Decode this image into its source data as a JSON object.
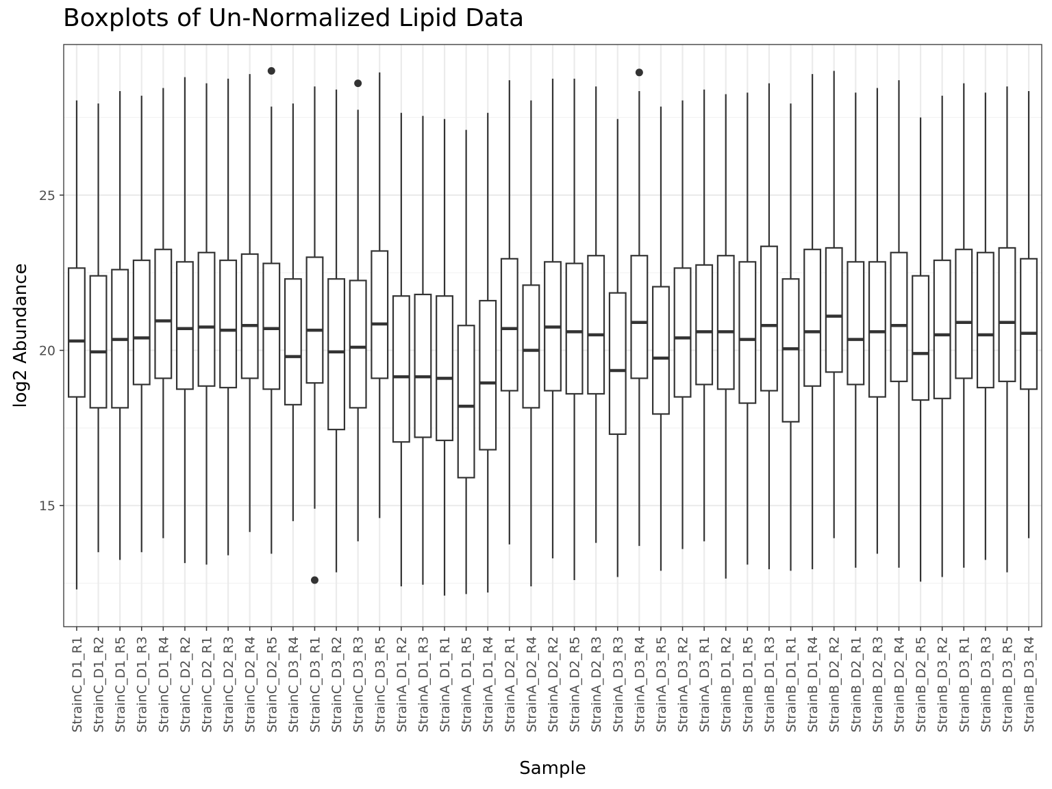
{
  "chart_data": {
    "type": "boxplot",
    "title": "Boxplots of Un-Normalized Lipid Data",
    "xlabel": "Sample",
    "ylabel": "log2 Abundance",
    "ylim": [
      11.1,
      29.85
    ],
    "yticks": [
      15,
      20,
      25
    ],
    "grid": true,
    "legend": "none",
    "colors": {
      "box": "#333333",
      "grid_major": "#ebebeb",
      "grid_minor": "#f2f2f2",
      "panel_border": "#333333",
      "tick_label": "#4d4d4d"
    },
    "categories": [
      "StrainC_D1_R1",
      "StrainC_D1_R2",
      "StrainC_D1_R5",
      "StrainC_D1_R3",
      "StrainC_D1_R4",
      "StrainC_D2_R2",
      "StrainC_D2_R1",
      "StrainC_D2_R3",
      "StrainC_D2_R4",
      "StrainC_D2_R5",
      "StrainC_D3_R4",
      "StrainC_D3_R1",
      "StrainC_D3_R2",
      "StrainC_D3_R3",
      "StrainC_D3_R5",
      "StrainA_D1_R2",
      "StrainA_D1_R3",
      "StrainA_D1_R1",
      "StrainA_D1_R5",
      "StrainA_D1_R4",
      "StrainA_D2_R1",
      "StrainA_D2_R4",
      "StrainA_D2_R2",
      "StrainA_D2_R5",
      "StrainA_D2_R3",
      "StrainA_D3_R3",
      "StrainA_D3_R4",
      "StrainA_D3_R5",
      "StrainA_D3_R2",
      "StrainA_D3_R1",
      "StrainB_D1_R2",
      "StrainB_D1_R5",
      "StrainB_D1_R3",
      "StrainB_D1_R1",
      "StrainB_D1_R4",
      "StrainB_D2_R2",
      "StrainB_D2_R1",
      "StrainB_D2_R3",
      "StrainB_D2_R4",
      "StrainB_D2_R5",
      "StrainB_D3_R2",
      "StrainB_D3_R1",
      "StrainB_D3_R3",
      "StrainB_D3_R5",
      "StrainB_D3_R4"
    ],
    "boxes": [
      {
        "min": 12.3,
        "q1": 18.5,
        "median": 20.3,
        "q3": 22.65,
        "max": 28.05,
        "outliers": []
      },
      {
        "min": 13.5,
        "q1": 18.15,
        "median": 19.95,
        "q3": 22.4,
        "max": 27.95,
        "outliers": []
      },
      {
        "min": 13.25,
        "q1": 18.15,
        "median": 20.35,
        "q3": 22.6,
        "max": 28.35,
        "outliers": []
      },
      {
        "min": 13.5,
        "q1": 18.9,
        "median": 20.4,
        "q3": 22.9,
        "max": 28.2,
        "outliers": []
      },
      {
        "min": 13.95,
        "q1": 19.1,
        "median": 20.95,
        "q3": 23.25,
        "max": 28.45,
        "outliers": []
      },
      {
        "min": 13.15,
        "q1": 18.75,
        "median": 20.7,
        "q3": 22.85,
        "max": 28.8,
        "outliers": []
      },
      {
        "min": 13.1,
        "q1": 18.85,
        "median": 20.75,
        "q3": 23.15,
        "max": 28.6,
        "outliers": []
      },
      {
        "min": 13.4,
        "q1": 18.8,
        "median": 20.65,
        "q3": 22.9,
        "max": 28.75,
        "outliers": []
      },
      {
        "min": 14.15,
        "q1": 19.1,
        "median": 20.8,
        "q3": 23.1,
        "max": 28.9,
        "outliers": []
      },
      {
        "min": 13.45,
        "q1": 18.75,
        "median": 20.7,
        "q3": 22.8,
        "max": 27.85,
        "outliers": [
          29.0
        ]
      },
      {
        "min": 14.5,
        "q1": 18.25,
        "median": 19.8,
        "q3": 22.3,
        "max": 27.95,
        "outliers": []
      },
      {
        "min": 14.9,
        "q1": 18.95,
        "median": 20.65,
        "q3": 23.0,
        "max": 28.5,
        "outliers": [
          12.6
        ]
      },
      {
        "min": 12.85,
        "q1": 17.45,
        "median": 19.95,
        "q3": 22.3,
        "max": 28.4,
        "outliers": []
      },
      {
        "min": 13.85,
        "q1": 18.15,
        "median": 20.1,
        "q3": 22.25,
        "max": 27.75,
        "outliers": [
          28.6
        ]
      },
      {
        "min": 14.6,
        "q1": 19.1,
        "median": 20.85,
        "q3": 23.2,
        "max": 28.95,
        "outliers": []
      },
      {
        "min": 12.4,
        "q1": 17.05,
        "median": 19.15,
        "q3": 21.75,
        "max": 27.65,
        "outliers": []
      },
      {
        "min": 12.45,
        "q1": 17.2,
        "median": 19.15,
        "q3": 21.8,
        "max": 27.55,
        "outliers": []
      },
      {
        "min": 12.1,
        "q1": 17.1,
        "median": 19.1,
        "q3": 21.75,
        "max": 27.45,
        "outliers": []
      },
      {
        "min": 12.15,
        "q1": 15.9,
        "median": 18.2,
        "q3": 20.8,
        "max": 27.1,
        "outliers": []
      },
      {
        "min": 12.2,
        "q1": 16.8,
        "median": 18.95,
        "q3": 21.6,
        "max": 27.65,
        "outliers": []
      },
      {
        "min": 13.75,
        "q1": 18.7,
        "median": 20.7,
        "q3": 22.95,
        "max": 28.7,
        "outliers": []
      },
      {
        "min": 12.4,
        "q1": 18.15,
        "median": 20.0,
        "q3": 22.1,
        "max": 28.05,
        "outliers": []
      },
      {
        "min": 13.3,
        "q1": 18.7,
        "median": 20.75,
        "q3": 22.85,
        "max": 28.75,
        "outliers": []
      },
      {
        "min": 12.6,
        "q1": 18.6,
        "median": 20.6,
        "q3": 22.8,
        "max": 28.75,
        "outliers": []
      },
      {
        "min": 13.8,
        "q1": 18.6,
        "median": 20.5,
        "q3": 23.05,
        "max": 28.5,
        "outliers": []
      },
      {
        "min": 12.7,
        "q1": 17.3,
        "median": 19.35,
        "q3": 21.85,
        "max": 27.45,
        "outliers": []
      },
      {
        "min": 13.7,
        "q1": 19.1,
        "median": 20.9,
        "q3": 23.05,
        "max": 28.35,
        "outliers": [
          28.95
        ]
      },
      {
        "min": 12.9,
        "q1": 17.95,
        "median": 19.75,
        "q3": 22.05,
        "max": 27.85,
        "outliers": []
      },
      {
        "min": 13.6,
        "q1": 18.5,
        "median": 20.4,
        "q3": 22.65,
        "max": 28.05,
        "outliers": []
      },
      {
        "min": 13.85,
        "q1": 18.9,
        "median": 20.6,
        "q3": 22.75,
        "max": 28.4,
        "outliers": []
      },
      {
        "min": 12.65,
        "q1": 18.75,
        "median": 20.6,
        "q3": 23.05,
        "max": 28.25,
        "outliers": []
      },
      {
        "min": 13.1,
        "q1": 18.3,
        "median": 20.35,
        "q3": 22.85,
        "max": 28.3,
        "outliers": []
      },
      {
        "min": 12.95,
        "q1": 18.7,
        "median": 20.8,
        "q3": 23.35,
        "max": 28.6,
        "outliers": []
      },
      {
        "min": 12.9,
        "q1": 17.7,
        "median": 20.05,
        "q3": 22.3,
        "max": 27.95,
        "outliers": []
      },
      {
        "min": 12.95,
        "q1": 18.85,
        "median": 20.6,
        "q3": 23.25,
        "max": 28.9,
        "outliers": []
      },
      {
        "min": 13.95,
        "q1": 19.3,
        "median": 21.1,
        "q3": 23.3,
        "max": 29.0,
        "outliers": []
      },
      {
        "min": 13.0,
        "q1": 18.9,
        "median": 20.35,
        "q3": 22.85,
        "max": 28.3,
        "outliers": []
      },
      {
        "min": 13.45,
        "q1": 18.5,
        "median": 20.6,
        "q3": 22.85,
        "max": 28.45,
        "outliers": []
      },
      {
        "min": 13.0,
        "q1": 19.0,
        "median": 20.8,
        "q3": 23.15,
        "max": 28.7,
        "outliers": []
      },
      {
        "min": 12.55,
        "q1": 18.4,
        "median": 19.9,
        "q3": 22.4,
        "max": 27.5,
        "outliers": []
      },
      {
        "min": 12.7,
        "q1": 18.45,
        "median": 20.5,
        "q3": 22.9,
        "max": 28.2,
        "outliers": []
      },
      {
        "min": 13.0,
        "q1": 19.1,
        "median": 20.9,
        "q3": 23.25,
        "max": 28.6,
        "outliers": []
      },
      {
        "min": 13.25,
        "q1": 18.8,
        "median": 20.5,
        "q3": 23.15,
        "max": 28.3,
        "outliers": []
      },
      {
        "min": 12.85,
        "q1": 19.0,
        "median": 20.9,
        "q3": 23.3,
        "max": 28.5,
        "outliers": []
      },
      {
        "min": 13.95,
        "q1": 18.75,
        "median": 20.55,
        "q3": 22.95,
        "max": 28.35,
        "outliers": []
      }
    ]
  }
}
